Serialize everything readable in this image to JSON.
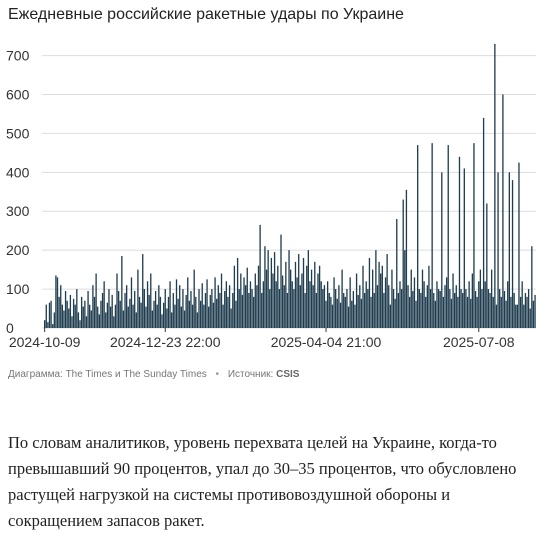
{
  "title": "Ежедневные российские ракетные удары по Украине",
  "caption": {
    "chart_label": "Диаграмма:",
    "chart_source": "The Times и The Sunday Times",
    "sep": "•",
    "source_label": "Источник:",
    "source": "CSIS"
  },
  "body_text": "По словам аналитиков, уровень перехвата целей на Украине, когда-то превышавший 90 процентов, упал до 30–35 процентов, что обусловлено растущей нагрузкой на системы противовоздушной обороны и сокращением запасов ракет.",
  "colors": {
    "bar": "#1f3d4f",
    "grid": "#dddddd"
  },
  "chart_data": {
    "type": "bar",
    "title": "Ежедневные российские ракетные удары по Украине",
    "xlabel": "",
    "ylabel": "",
    "ylim": [
      0,
      740
    ],
    "yticks": [
      0,
      100,
      200,
      300,
      400,
      500,
      600,
      700
    ],
    "x_tick_labels": [
      "2024-10-09",
      "2024-12-23 22:00",
      "2025-04-04 21:00",
      "2025-07-08"
    ],
    "x_tick_positions": [
      0,
      75,
      175,
      270
    ],
    "grid": true,
    "values": [
      20,
      60,
      15,
      65,
      70,
      10,
      40,
      135,
      130,
      80,
      110,
      60,
      45,
      95,
      70,
      50,
      85,
      30,
      75,
      60,
      100,
      40,
      20,
      80,
      55,
      70,
      30,
      95,
      60,
      45,
      110,
      80,
      140,
      55,
      35,
      70,
      90,
      120,
      40,
      65,
      100,
      55,
      85,
      30,
      60,
      140,
      95,
      70,
      185,
      45,
      90,
      110,
      55,
      75,
      130,
      60,
      95,
      40,
      150,
      80,
      65,
      190,
      100,
      55,
      120,
      85,
      140,
      45,
      70,
      95,
      60,
      110,
      80,
      35,
      65,
      100,
      50,
      80,
      120,
      40,
      90,
      60,
      125,
      75,
      110,
      55,
      100,
      45,
      85,
      130,
      70,
      95,
      60,
      150,
      80,
      40,
      100,
      70,
      115,
      60,
      90,
      125,
      55,
      85,
      100,
      65,
      130,
      75,
      110,
      90,
      140,
      60,
      95,
      120,
      80,
      110,
      50,
      90,
      160,
      70,
      180,
      100,
      140,
      85,
      130,
      110,
      155,
      90,
      120,
      100,
      80,
      140,
      110,
      160,
      265,
      90,
      120,
      210,
      150,
      200,
      100,
      180,
      140,
      195,
      120,
      160,
      100,
      240,
      135,
      110,
      170,
      90,
      200,
      150,
      120,
      100,
      170,
      130,
      190,
      110,
      140,
      180,
      90,
      160,
      200,
      120,
      150,
      110,
      170,
      90,
      140,
      160,
      120,
      100,
      110,
      70,
      120,
      90,
      80,
      60,
      130,
      100,
      75,
      110,
      65,
      150,
      90,
      80,
      100,
      55,
      130,
      70,
      95,
      60,
      140,
      85,
      110,
      75,
      160,
      90,
      120,
      100,
      180,
      80,
      150,
      90,
      200,
      110,
      170,
      140,
      160,
      90,
      130,
      190,
      110,
      60,
      150,
      100,
      75,
      280,
      90,
      120,
      100,
      330,
      200,
      355,
      110,
      80,
      150,
      95,
      130,
      70,
      470,
      100,
      90,
      150,
      120,
      80,
      110,
      160,
      100,
      475,
      90,
      70,
      120,
      100,
      95,
      400,
      80,
      110,
      130,
      470,
      100,
      75,
      140,
      90,
      110,
      80,
      440,
      100,
      90,
      410,
      100,
      80,
      120,
      75,
      140,
      475,
      95,
      80,
      120,
      150,
      100,
      540,
      120,
      320,
      100,
      90,
      150,
      80,
      730,
      60,
      400,
      100,
      80,
      600,
      95,
      70,
      120,
      400,
      80,
      380,
      90,
      60,
      60,
      425,
      80,
      120,
      60,
      90,
      80,
      100,
      50,
      210,
      70,
      85
    ]
  }
}
